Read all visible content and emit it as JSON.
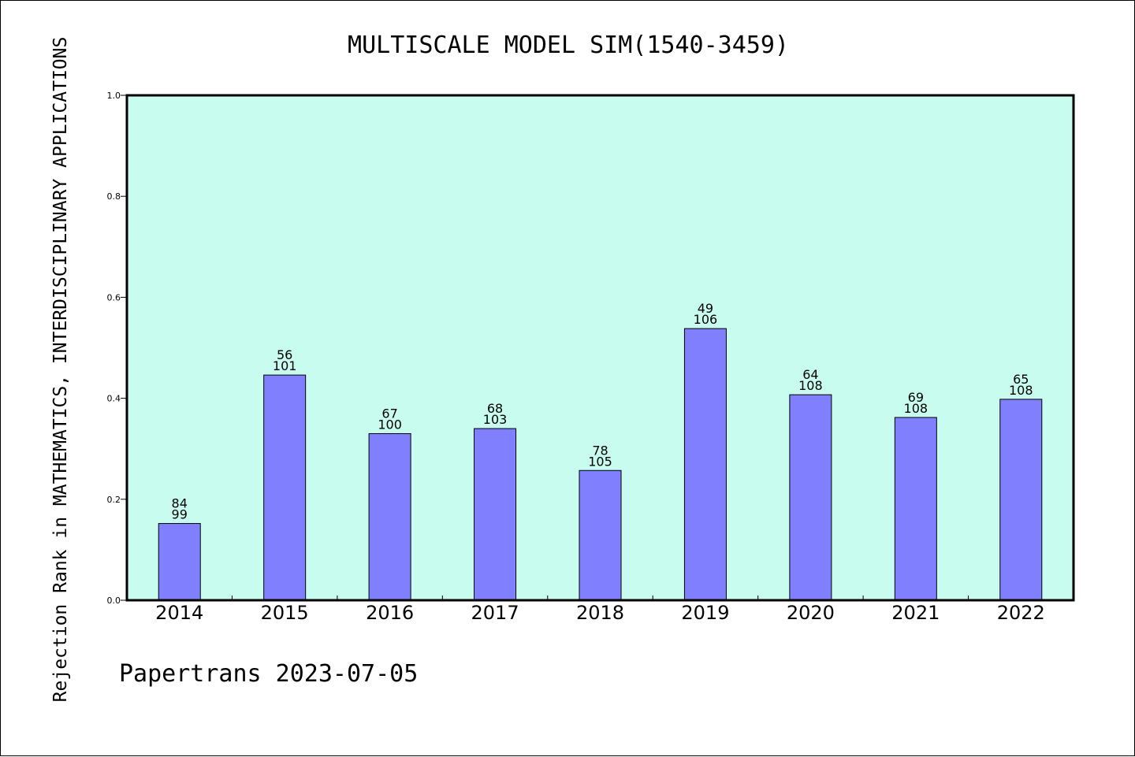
{
  "chart_data": {
    "type": "bar",
    "title": "MULTISCALE MODEL SIM(1540-3459)",
    "ylabel": "Rejection Rank in MATHEMATICS, INTERDISCIPLINARY APPLICATIONS",
    "xlabel": "",
    "ylim": [
      0,
      1.0
    ],
    "yticks": [
      "0.0",
      "0.2",
      "0.4",
      "0.6",
      "0.8",
      "1.0"
    ],
    "ytick_values": [
      0,
      0.2,
      0.4,
      0.6,
      0.8,
      1.0
    ],
    "categories": [
      "2014",
      "2015",
      "2016",
      "2017",
      "2018",
      "2019",
      "2020",
      "2021",
      "2022"
    ],
    "values": [
      0.152,
      0.446,
      0.33,
      0.34,
      0.257,
      0.538,
      0.407,
      0.362,
      0.398
    ],
    "label_top": [
      "84",
      "56",
      "67",
      "68",
      "78",
      "49",
      "64",
      "69",
      "65"
    ],
    "label_bottom": [
      "99",
      "101",
      "100",
      "103",
      "105",
      "106",
      "108",
      "108",
      "108"
    ],
    "grid": false,
    "legend": "none",
    "colors": {
      "plot_background": "#c8fcee",
      "bar_fill": "#8080ff",
      "bar_stroke": "#000000"
    }
  },
  "footer": "Papertrans 2023-07-05"
}
